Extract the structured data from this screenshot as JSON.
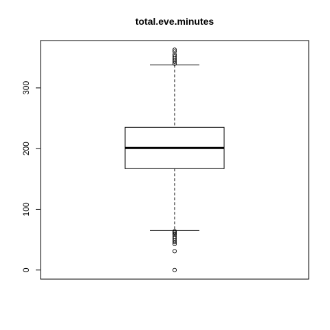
{
  "chart_data": {
    "type": "boxplot",
    "title": "total.eve.minutes",
    "xlabel": "",
    "ylabel": "",
    "ylim": [
      -15,
      378
    ],
    "yticks": [
      0,
      100,
      200,
      300
    ],
    "box": {
      "whisker_low": 65,
      "q1": 167,
      "median": 201,
      "q3": 235,
      "whisker_high": 338
    },
    "outliers": [
      0,
      31,
      43,
      46,
      49,
      52,
      55,
      58,
      60,
      62,
      64,
      340,
      343,
      346,
      349,
      352,
      355,
      360,
      363
    ],
    "grid": false,
    "legend": "none"
  }
}
